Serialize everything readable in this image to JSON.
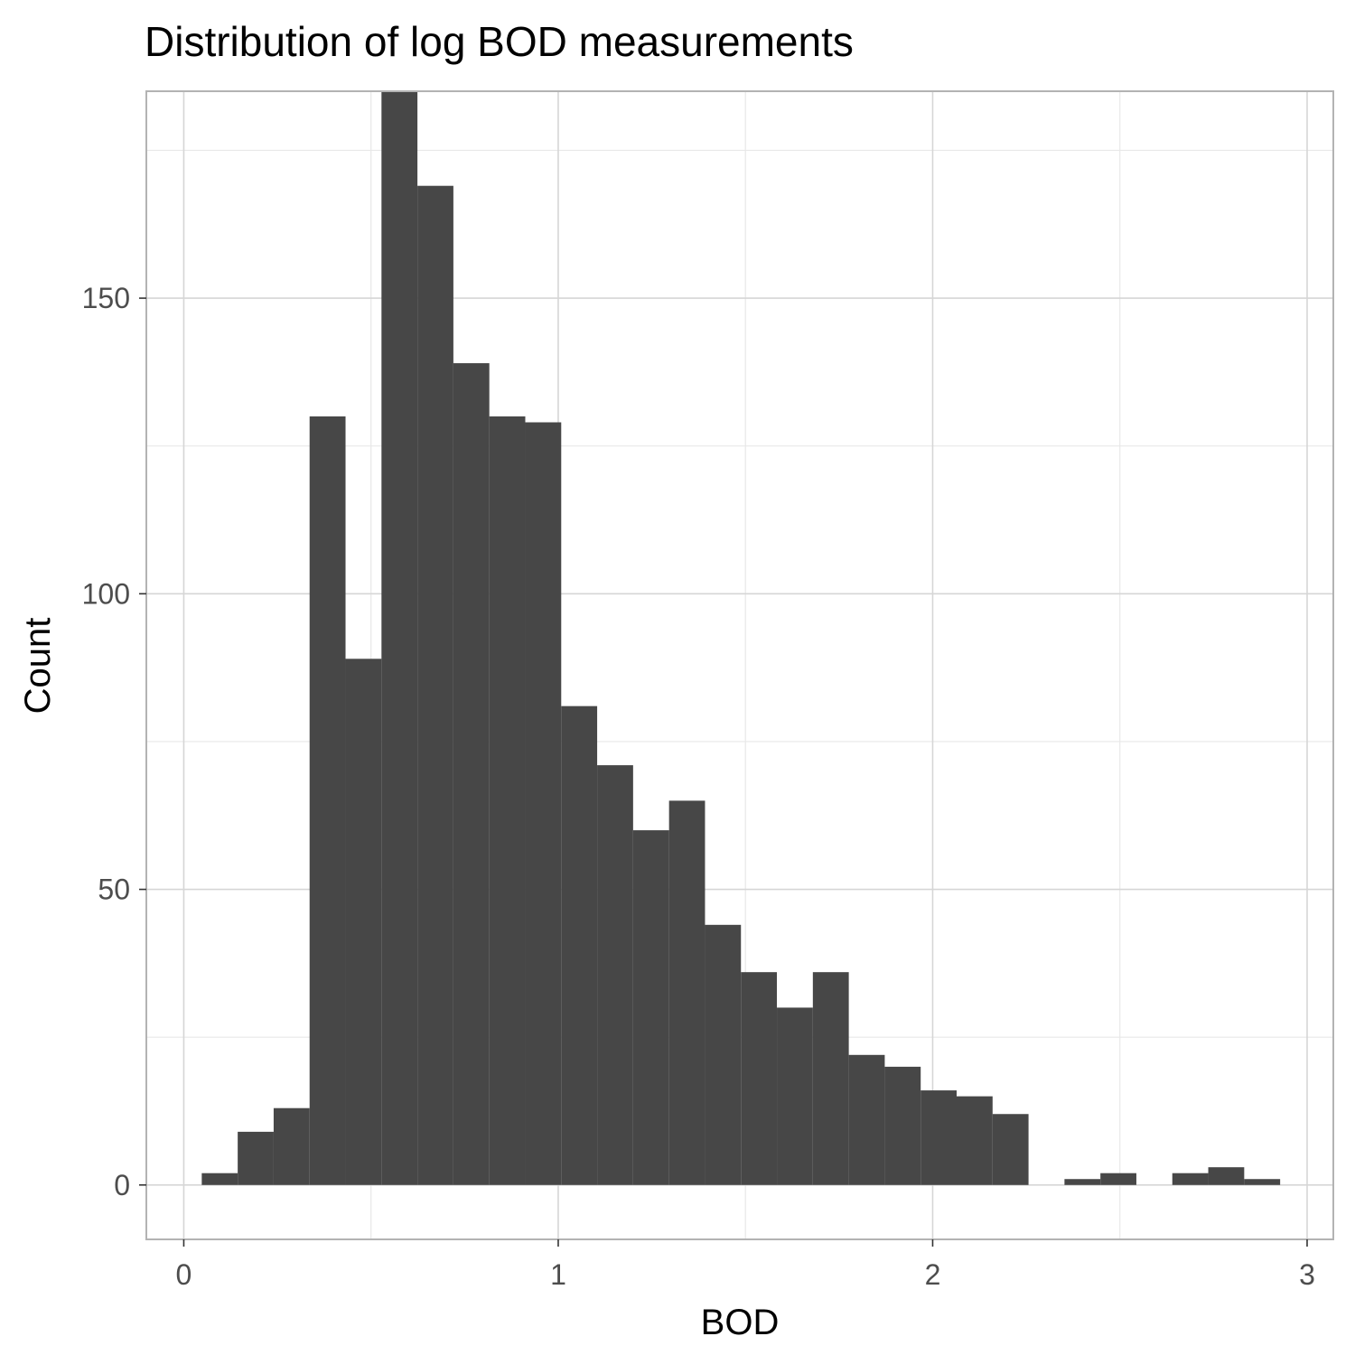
{
  "chart_data": {
    "type": "bar",
    "subtype": "histogram",
    "title": "Distribution of log BOD measurements",
    "xlabel": "BOD",
    "ylabel": "Count",
    "xlim": [
      -0.1,
      3.07
    ],
    "ylim": [
      -9.2,
      185
    ],
    "x_ticks": [
      0,
      1,
      2,
      3
    ],
    "x_tick_labels": [
      "0",
      "1",
      "2",
      "3"
    ],
    "y_ticks": [
      0,
      50,
      100,
      150
    ],
    "y_tick_labels": [
      "0",
      "50",
      "100",
      "150"
    ],
    "bin_width": 0.096,
    "bins": [
      {
        "x0": 0.048,
        "x1": 0.144,
        "count": 2
      },
      {
        "x0": 0.144,
        "x1": 0.24,
        "count": 9
      },
      {
        "x0": 0.24,
        "x1": 0.336,
        "count": 13
      },
      {
        "x0": 0.336,
        "x1": 0.432,
        "count": 130
      },
      {
        "x0": 0.432,
        "x1": 0.528,
        "count": 89
      },
      {
        "x0": 0.528,
        "x1": 0.624,
        "count": 185
      },
      {
        "x0": 0.624,
        "x1": 0.72,
        "count": 169
      },
      {
        "x0": 0.72,
        "x1": 0.816,
        "count": 139
      },
      {
        "x0": 0.816,
        "x1": 0.912,
        "count": 130
      },
      {
        "x0": 0.912,
        "x1": 1.008,
        "count": 129
      },
      {
        "x0": 1.008,
        "x1": 1.104,
        "count": 81
      },
      {
        "x0": 1.104,
        "x1": 1.2,
        "count": 71
      },
      {
        "x0": 1.2,
        "x1": 1.296,
        "count": 60
      },
      {
        "x0": 1.296,
        "x1": 1.392,
        "count": 65
      },
      {
        "x0": 1.392,
        "x1": 1.488,
        "count": 44
      },
      {
        "x0": 1.488,
        "x1": 1.584,
        "count": 36
      },
      {
        "x0": 1.584,
        "x1": 1.68,
        "count": 30
      },
      {
        "x0": 1.68,
        "x1": 1.776,
        "count": 36
      },
      {
        "x0": 1.776,
        "x1": 1.872,
        "count": 22
      },
      {
        "x0": 1.872,
        "x1": 1.968,
        "count": 20
      },
      {
        "x0": 1.968,
        "x1": 2.064,
        "count": 16
      },
      {
        "x0": 2.064,
        "x1": 2.16,
        "count": 15
      },
      {
        "x0": 2.16,
        "x1": 2.256,
        "count": 12
      },
      {
        "x0": 2.256,
        "x1": 2.352,
        "count": 0
      },
      {
        "x0": 2.352,
        "x1": 2.448,
        "count": 1
      },
      {
        "x0": 2.448,
        "x1": 2.544,
        "count": 2
      },
      {
        "x0": 2.544,
        "x1": 2.64,
        "count": 0
      },
      {
        "x0": 2.64,
        "x1": 2.736,
        "count": 2
      },
      {
        "x0": 2.736,
        "x1": 2.832,
        "count": 3
      },
      {
        "x0": 2.832,
        "x1": 2.928,
        "count": 1
      }
    ],
    "bar_color": "#474747",
    "panel_background": "#ffffff",
    "grid": true
  }
}
